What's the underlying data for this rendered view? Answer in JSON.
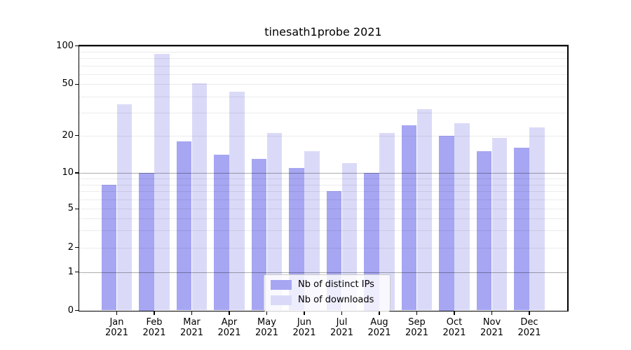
{
  "title": "tinesath1probe 2021",
  "chart_data": {
    "type": "bar",
    "title": "tinesath1probe 2021",
    "categories": [
      "Jan 2021",
      "Feb 2021",
      "Mar 2021",
      "Apr 2021",
      "May 2021",
      "Jun 2021",
      "Jul 2021",
      "Aug 2021",
      "Sep 2021",
      "Oct 2021",
      "Nov 2021",
      "Dec 2021"
    ],
    "series": [
      {
        "name": "Nb of distinct IPs",
        "color": "#a6a6f2",
        "values": [
          8,
          10,
          18,
          14,
          13,
          11,
          7,
          10,
          24,
          20,
          15,
          16
        ]
      },
      {
        "name": "Nb of downloads",
        "color": "#dadaf8",
        "values": [
          35,
          86,
          51,
          44,
          21,
          15,
          12,
          21,
          32,
          25,
          19,
          23
        ]
      }
    ],
    "xlabel": "",
    "ylabel": "",
    "yscale": "symlog",
    "ylim": [
      0,
      100
    ],
    "yticks": [
      0,
      1,
      2,
      5,
      10,
      20,
      50,
      100
    ],
    "minor_gridlines": [
      2,
      3,
      4,
      5,
      6,
      7,
      8,
      9,
      20,
      30,
      40,
      50,
      60,
      70,
      80,
      90
    ],
    "major_gridlines": [
      1,
      10,
      100
    ],
    "grid": true,
    "legend_position": "lower center"
  },
  "legend": {
    "items": [
      {
        "label": "Nb of distinct IPs",
        "color": "#a6a6f2"
      },
      {
        "label": "Nb of downloads",
        "color": "#dadaf8"
      }
    ]
  }
}
